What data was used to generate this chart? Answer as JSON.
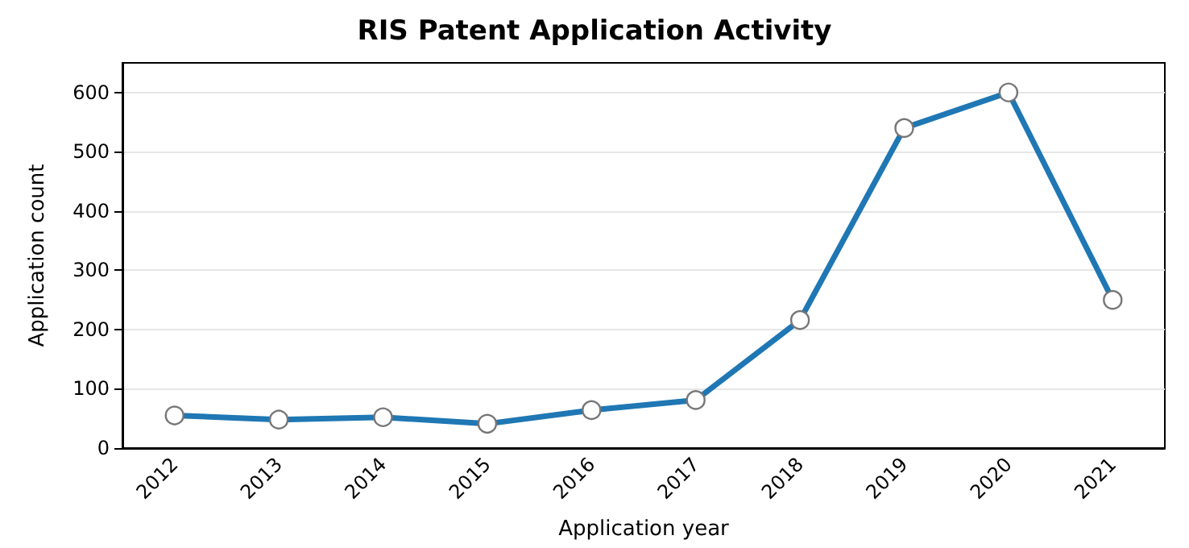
{
  "chart_data": {
    "type": "line",
    "title": "RIS Patent Application Activity",
    "xlabel": "Application year",
    "ylabel": "Application count",
    "categories": [
      "2012",
      "2013",
      "2014",
      "2015",
      "2016",
      "2017",
      "2018",
      "2019",
      "2020",
      "2021"
    ],
    "series": [
      {
        "color": "#1f77b4",
        "values": [
          55,
          48,
          52,
          41,
          64,
          81,
          216,
          540,
          600,
          250
        ]
      }
    ],
    "ylim": [
      0,
      650
    ],
    "yticks": [
      0,
      100,
      200,
      300,
      400,
      500,
      600
    ],
    "grid": "y",
    "marker": "circle",
    "line_style": "solid"
  }
}
